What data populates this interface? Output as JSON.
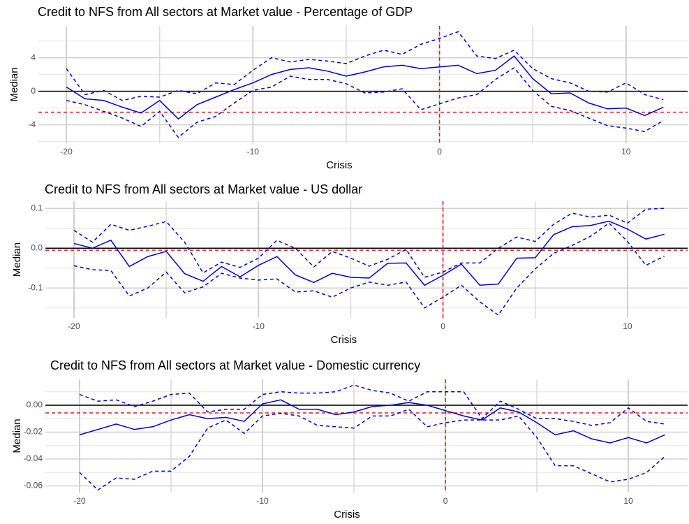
{
  "chart_data": [
    {
      "type": "line",
      "title": "Credit to NFS from All sectors at Market value - Percentage of GDP",
      "x_label": "Crisis",
      "y_label": "Median",
      "x": [
        -20,
        -19,
        -18,
        -17,
        -16,
        -15,
        -14,
        -13,
        -12,
        -11,
        -10,
        -9,
        -8,
        -7,
        -6,
        -5,
        -4,
        -3,
        -2,
        -1,
        0,
        1,
        2,
        3,
        4,
        5,
        6,
        7,
        8,
        9,
        10,
        11,
        12
      ],
      "series": [
        {
          "color": "#0000dd",
          "dashed": false,
          "values": [
            0.5,
            -0.9,
            -1.1,
            -1.9,
            -2.6,
            -1.1,
            -3.3,
            -1.6,
            -0.7,
            0.2,
            1.0,
            2.0,
            2.6,
            2.8,
            2.4,
            1.8,
            2.3,
            2.9,
            3.1,
            2.7,
            2.9,
            3.1,
            2.1,
            2.5,
            4.2,
            1.5,
            -0.3,
            -0.2,
            -1.4,
            -2.1,
            -2.0,
            -2.9,
            -1.9
          ]
        },
        {
          "color": "#0000dd",
          "dashed": true,
          "values": [
            2.7,
            -0.4,
            0.1,
            -1.1,
            -0.6,
            -0.7,
            0.1,
            -0.3,
            1.0,
            0.8,
            2.5,
            4.0,
            3.5,
            3.8,
            3.6,
            3.3,
            4.2,
            4.9,
            4.4,
            5.6,
            6.3,
            7.1,
            4.2,
            3.9,
            4.9,
            2.7,
            1.5,
            1.0,
            0.0,
            -0.1,
            1.0,
            -0.4,
            -1.0
          ]
        },
        {
          "color": "#0000dd",
          "dashed": true,
          "values": [
            -1.1,
            -1.6,
            -2.4,
            -3.2,
            -4.2,
            -2.4,
            -5.5,
            -3.7,
            -3.0,
            -1.4,
            0.1,
            0.5,
            1.8,
            1.4,
            1.4,
            0.9,
            -0.2,
            -0.1,
            0.3,
            -2.2,
            -1.5,
            -0.8,
            -0.4,
            1.4,
            2.8,
            0.1,
            -1.8,
            -2.3,
            -3.2,
            -4.1,
            -4.4,
            -4.8,
            -3.5
          ]
        }
      ],
      "hlines": [
        {
          "y": 0,
          "color": "#000000",
          "dashed": false
        },
        {
          "y": -2.5,
          "color": "#e41a1c",
          "dashed": true
        }
      ],
      "vlines": [
        {
          "x": 0,
          "color": "#e41a1c",
          "dashed": true
        }
      ],
      "xlim": [
        -21.5,
        13.3
      ],
      "xticks": [
        -20,
        -10,
        0,
        10
      ],
      "ylim": [
        -6.2,
        7.8
      ],
      "yticks": [
        -4,
        0,
        4
      ],
      "grid": true
    },
    {
      "type": "line",
      "title": "Credit to NFS from All sectors at Market value - US dollar",
      "x_label": "Crisis",
      "y_label": "Median",
      "x": [
        -20,
        -19,
        -18,
        -17,
        -16,
        -15,
        -14,
        -13,
        -12,
        -11,
        -10,
        -9,
        -8,
        -7,
        -6,
        -5,
        -4,
        -3,
        -2,
        -1,
        0,
        1,
        2,
        3,
        4,
        5,
        6,
        7,
        8,
        9,
        10,
        11,
        12
      ],
      "series": [
        {
          "color": "#0000dd",
          "dashed": false,
          "values": [
            0.012,
            0.0,
            0.02,
            -0.046,
            -0.021,
            -0.008,
            -0.064,
            -0.083,
            -0.046,
            -0.072,
            -0.043,
            -0.021,
            -0.067,
            -0.086,
            -0.063,
            -0.073,
            -0.075,
            -0.038,
            -0.037,
            -0.093,
            -0.068,
            -0.04,
            -0.093,
            -0.09,
            -0.025,
            -0.024,
            0.034,
            0.054,
            0.057,
            0.068,
            0.048,
            0.023,
            0.035
          ]
        },
        {
          "color": "#0000dd",
          "dashed": true,
          "values": [
            0.045,
            0.015,
            0.06,
            0.045,
            0.055,
            0.067,
            0.015,
            -0.062,
            -0.035,
            -0.048,
            -0.025,
            0.02,
            0.0,
            -0.047,
            -0.008,
            -0.025,
            -0.045,
            -0.028,
            -0.003,
            -0.073,
            -0.06,
            -0.037,
            -0.037,
            0.0,
            0.028,
            0.017,
            0.06,
            0.088,
            0.078,
            0.083,
            0.063,
            0.098,
            0.1
          ]
        },
        {
          "color": "#0000dd",
          "dashed": true,
          "values": [
            -0.044,
            -0.054,
            -0.056,
            -0.12,
            -0.1,
            -0.06,
            -0.112,
            -0.097,
            -0.063,
            -0.075,
            -0.08,
            -0.077,
            -0.11,
            -0.107,
            -0.123,
            -0.1,
            -0.085,
            -0.093,
            -0.085,
            -0.15,
            -0.123,
            -0.093,
            -0.135,
            -0.168,
            -0.1,
            -0.052,
            -0.013,
            0.007,
            0.03,
            0.063,
            0.017,
            -0.043,
            -0.02
          ]
        }
      ],
      "hlines": [
        {
          "y": 0,
          "color": "#000000",
          "dashed": false
        },
        {
          "y": -0.005,
          "color": "#e41a1c",
          "dashed": true
        }
      ],
      "vlines": [
        {
          "x": 0,
          "color": "#e41a1c",
          "dashed": true
        }
      ],
      "xlim": [
        -21.55,
        13.26
      ],
      "xticks": [
        -20,
        -10,
        0,
        10
      ],
      "ylim": [
        -0.175,
        0.118
      ],
      "yticks": [
        0.1,
        {
          "value": 0,
          "label": "0.0"
        },
        -0.1
      ],
      "grid": true
    },
    {
      "type": "line",
      "title": "Credit to NFS from All sectors at Market value - Domestic currency",
      "x_label": "Crisis",
      "y_label": "Median",
      "x": [
        -20,
        -19,
        -18,
        -17,
        -16,
        -15,
        -14,
        -13,
        -12,
        -11,
        -10,
        -9,
        -8,
        -7,
        -6,
        -5,
        -4,
        -3,
        -2,
        -1,
        0,
        1,
        2,
        3,
        4,
        5,
        6,
        7,
        8,
        9,
        10,
        11,
        12
      ],
      "series": [
        {
          "color": "#0000dd",
          "dashed": false,
          "values": [
            -0.022,
            -0.018,
            -0.014,
            -0.018,
            -0.016,
            -0.011,
            -0.007,
            -0.01,
            -0.009,
            -0.012,
            0.001,
            0.004,
            -0.003,
            -0.003,
            -0.007,
            -0.005,
            -0.001,
            0.0,
            0.002,
            0.0,
            -0.004,
            -0.008,
            -0.011,
            -0.002,
            -0.005,
            -0.013,
            -0.022,
            -0.019,
            -0.025,
            -0.028,
            -0.024,
            -0.028,
            -0.022
          ]
        },
        {
          "color": "#0000dd",
          "dashed": true,
          "values": [
            0.008,
            0.003,
            0.004,
            -0.001,
            0.003,
            0.008,
            0.009,
            -0.005,
            -0.003,
            -0.003,
            0.008,
            0.01,
            0.009,
            0.009,
            0.01,
            0.015,
            0.011,
            0.009,
            0.003,
            0.01,
            0.01,
            0.01,
            -0.01,
            0.003,
            -0.003,
            -0.01,
            -0.01,
            -0.012,
            -0.015,
            -0.013,
            -0.002,
            -0.012,
            -0.014
          ]
        },
        {
          "color": "#0000dd",
          "dashed": true,
          "values": [
            -0.05,
            -0.063,
            -0.054,
            -0.055,
            -0.049,
            -0.049,
            -0.038,
            -0.017,
            -0.011,
            -0.021,
            -0.008,
            -0.006,
            -0.008,
            -0.015,
            -0.016,
            -0.017,
            -0.008,
            -0.008,
            -0.003,
            -0.016,
            -0.013,
            -0.011,
            -0.011,
            -0.011,
            -0.008,
            -0.024,
            -0.045,
            -0.045,
            -0.051,
            -0.057,
            -0.055,
            -0.05,
            -0.038
          ]
        }
      ],
      "hlines": [
        {
          "y": 0,
          "color": "#000000",
          "dashed": false
        },
        {
          "y": -0.0057,
          "color": "#e41a1c",
          "dashed": true
        }
      ],
      "vlines": [
        {
          "x": 0,
          "color": "#e41a1c",
          "dashed": true
        }
      ],
      "xlim": [
        -21.87,
        13.24
      ],
      "xticks": [
        -20,
        -10,
        0,
        10
      ],
      "ylim": [
        -0.0649,
        0.0192
      ],
      "yticks": [
        {
          "value": 0,
          "label": "0.00"
        },
        {
          "value": -0.02,
          "label": "-0.02"
        },
        {
          "value": -0.04,
          "label": "-0.04"
        },
        {
          "value": -0.06,
          "label": "-0.06"
        }
      ],
      "grid": true
    }
  ]
}
